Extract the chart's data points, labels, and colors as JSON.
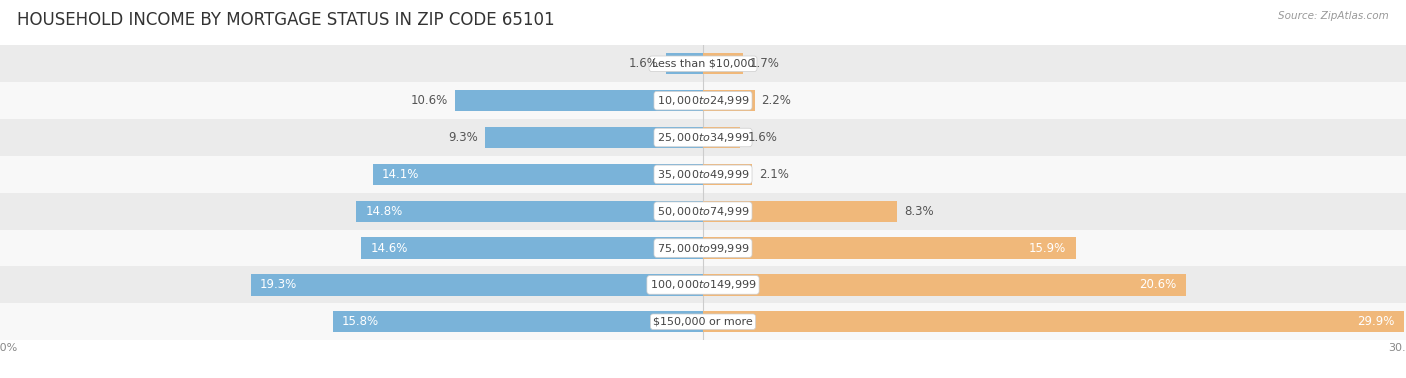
{
  "title": "HOUSEHOLD INCOME BY MORTGAGE STATUS IN ZIP CODE 65101",
  "source": "Source: ZipAtlas.com",
  "categories": [
    "Less than $10,000",
    "$10,000 to $24,999",
    "$25,000 to $34,999",
    "$35,000 to $49,999",
    "$50,000 to $74,999",
    "$75,000 to $99,999",
    "$100,000 to $149,999",
    "$150,000 or more"
  ],
  "without_mortgage": [
    1.6,
    10.6,
    9.3,
    14.1,
    14.8,
    14.6,
    19.3,
    15.8
  ],
  "with_mortgage": [
    1.7,
    2.2,
    1.6,
    2.1,
    8.3,
    15.9,
    20.6,
    29.9
  ],
  "color_without": "#7ab3d9",
  "color_with": "#f0b87a",
  "bg_odd": "#ebebeb",
  "bg_even": "#f8f8f8",
  "xlim": 30.0,
  "title_fontsize": 12,
  "label_fontsize": 8.5,
  "category_fontsize": 8,
  "axis_label_fontsize": 8,
  "legend_fontsize": 9,
  "bar_height": 0.58,
  "inside_label_threshold": 14.0
}
